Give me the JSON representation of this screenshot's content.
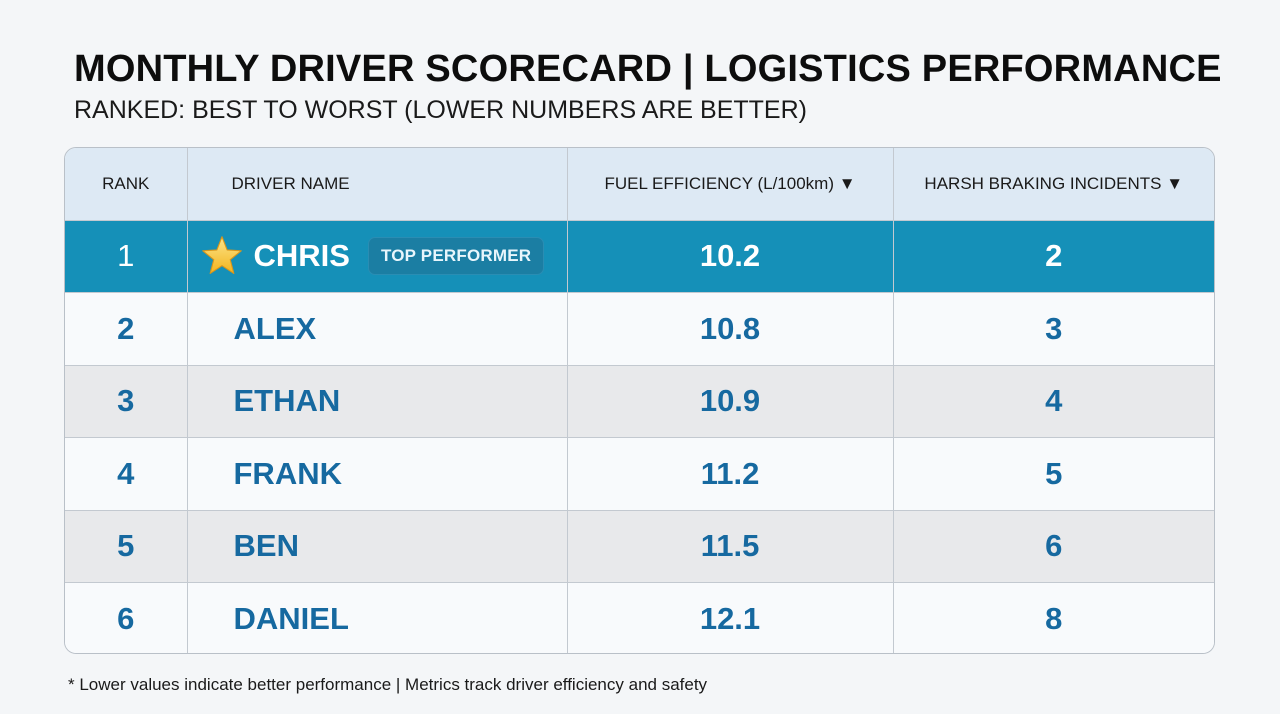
{
  "header": {
    "title": "MONTHLY DRIVER SCORECARD | LOGISTICS PERFORMANCE",
    "subtitle": "RANKED: BEST TO WORST (LOWER NUMBERS ARE BETTER)"
  },
  "table": {
    "columns": {
      "rank": "RANK",
      "driver_name": "DRIVER NAME",
      "fuel_efficiency": "FUEL EFFICIENCY (L/100km) ▼",
      "harsh_braking": "HARSH BRAKING INCIDENTS ▼"
    },
    "rows": [
      {
        "rank": "1",
        "name": "CHRIS",
        "fuel": "10.2",
        "braking": "2",
        "badge": "TOP PERFORMER",
        "icon": "star-icon"
      },
      {
        "rank": "2",
        "name": "ALEX",
        "fuel": "10.8",
        "braking": "3"
      },
      {
        "rank": "3",
        "name": "ETHAN",
        "fuel": "10.9",
        "braking": "4"
      },
      {
        "rank": "4",
        "name": "FRANK",
        "fuel": "11.2",
        "braking": "5"
      },
      {
        "rank": "5",
        "name": "BEN",
        "fuel": "11.5",
        "braking": "6"
      },
      {
        "rank": "6",
        "name": "DANIEL",
        "fuel": "12.1",
        "braking": "8"
      }
    ]
  },
  "footnote": "* Lower values indicate better performance | Metrics track driver efficiency and safety",
  "colors": {
    "top_row": "#1590b8",
    "header_row": "#dde9f4",
    "value_text": "#1669a0",
    "badge": "#1b7ea3",
    "star": "#f6c234"
  }
}
